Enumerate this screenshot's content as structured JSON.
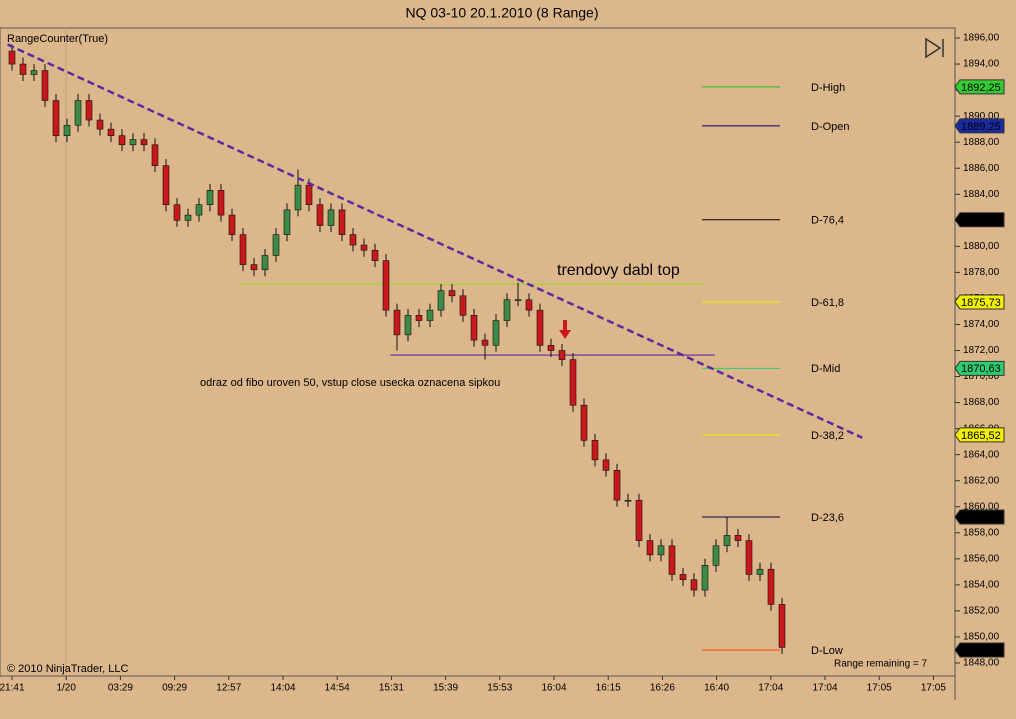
{
  "chart_data": {
    "type": "candlestick",
    "title": "NQ 03-10  20.1.2010 (8 Range)",
    "indicator": "RangeCounter(True)",
    "copyright": "© 2010 NinjaTrader, LLC",
    "range_remaining": "Range remaining = 7",
    "annotations": [
      "trendovy dabl top",
      "odraz od fibo uroven 50, vstup close usecka oznacena sipkou"
    ],
    "up_color": "#3d8a46",
    "down_color": "#c8181b",
    "ylim": [
      1847.0,
      1896.77
    ],
    "yticks": [
      {
        "value": 1848,
        "label": "1848,00"
      },
      {
        "value": 1850,
        "label": "1850,00"
      },
      {
        "value": 1852,
        "label": "1852,00"
      },
      {
        "value": 1854,
        "label": "1854,00"
      },
      {
        "value": 1856,
        "label": "1856,00"
      },
      {
        "value": 1858,
        "label": "1858,00"
      },
      {
        "value": 1860,
        "label": "1860,00"
      },
      {
        "value": 1862,
        "label": "1862,00"
      },
      {
        "value": 1864,
        "label": "1864,00"
      },
      {
        "value": 1866,
        "label": "1866,00"
      },
      {
        "value": 1868,
        "label": "1868,00"
      },
      {
        "value": 1870,
        "label": "1870,00"
      },
      {
        "value": 1872,
        "label": "1872,00"
      },
      {
        "value": 1874,
        "label": "1874,00"
      },
      {
        "value": 1876,
        "label": "1876,00"
      },
      {
        "value": 1878,
        "label": "1878,00"
      },
      {
        "value": 1880,
        "label": "1880,00"
      },
      {
        "value": 1882,
        "label": "1882,00"
      },
      {
        "value": 1884,
        "label": "1884,00"
      },
      {
        "value": 1886,
        "label": "1886,00"
      },
      {
        "value": 1888,
        "label": "1888,00"
      },
      {
        "value": 1890,
        "label": "1890,00"
      },
      {
        "value": 1892,
        "label": "1892,00"
      },
      {
        "value": 1894,
        "label": "1894,00"
      },
      {
        "value": 1896,
        "label": "1896,00"
      }
    ],
    "x_labels": [
      "21:41",
      "1/20",
      "03:29",
      "09:29",
      "12:57",
      "14:04",
      "14:54",
      "15:31",
      "15:39",
      "15:53",
      "16:04",
      "16:15",
      "16:26",
      "16:40",
      "17:04",
      "17:04",
      "17:05",
      "17:05"
    ],
    "open": [
      1895.0,
      1894.0,
      1893.2,
      1893.5,
      1891.2,
      1888.5,
      1889.3,
      1891.2,
      1889.7,
      1889.0,
      1888.5,
      1887.8,
      1888.2,
      1887.8,
      1886.2,
      1883.2,
      1882.0,
      1882.4,
      1883.2,
      1884.3,
      1882.4,
      1880.9,
      1878.6,
      1878.2,
      1879.3,
      1880.9,
      1882.8,
      1884.7,
      1883.2,
      1881.6,
      1882.8,
      1880.9,
      1880.1,
      1879.7,
      1878.9,
      1875.1,
      1873.2,
      1874.7,
      1874.3,
      1875.1,
      1876.6,
      1876.2,
      1874.7,
      1872.8,
      1872.4,
      1874.3,
      1875.9,
      1875.9,
      1875.1,
      1872.4,
      1872.0,
      1871.3,
      1867.8,
      1865.1,
      1863.6,
      1862.8,
      1860.5,
      1860.5,
      1857.4,
      1856.3,
      1857.0,
      1854.8,
      1854.4,
      1853.6,
      1855.5,
      1857.0,
      1857.8,
      1857.4,
      1854.8,
      1855.2,
      1852.5
    ],
    "high": [
      1895.5,
      1894.5,
      1894.0,
      1894.0,
      1891.7,
      1889.8,
      1891.7,
      1891.7,
      1890.2,
      1889.5,
      1889.0,
      1888.7,
      1888.7,
      1888.3,
      1886.7,
      1883.7,
      1882.9,
      1883.7,
      1884.8,
      1884.8,
      1882.9,
      1881.4,
      1879.1,
      1879.8,
      1881.4,
      1883.3,
      1885.9,
      1885.2,
      1883.7,
      1883.3,
      1883.3,
      1881.4,
      1880.6,
      1880.2,
      1879.4,
      1875.6,
      1875.2,
      1875.2,
      1875.6,
      1877.1,
      1877.1,
      1876.7,
      1875.2,
      1873.3,
      1874.8,
      1876.4,
      1877.2,
      1876.4,
      1875.6,
      1872.9,
      1872.5,
      1871.8,
      1868.3,
      1865.6,
      1864.1,
      1863.3,
      1861.0,
      1861.0,
      1857.9,
      1857.5,
      1857.5,
      1855.3,
      1854.9,
      1856.0,
      1857.5,
      1859.2,
      1858.3,
      1857.9,
      1855.7,
      1855.7,
      1853.0
    ],
    "low": [
      1893.5,
      1892.7,
      1892.7,
      1890.7,
      1888.0,
      1888.0,
      1888.8,
      1889.2,
      1888.5,
      1888.0,
      1887.3,
      1887.3,
      1887.3,
      1885.7,
      1882.7,
      1881.5,
      1881.5,
      1881.9,
      1882.7,
      1881.9,
      1880.4,
      1878.1,
      1877.7,
      1877.7,
      1878.8,
      1880.4,
      1882.3,
      1882.7,
      1881.1,
      1881.1,
      1880.4,
      1879.6,
      1879.2,
      1878.4,
      1874.6,
      1872.0,
      1872.7,
      1873.8,
      1873.8,
      1874.6,
      1875.7,
      1874.2,
      1872.3,
      1871.3,
      1871.9,
      1873.8,
      1875.4,
      1874.6,
      1871.9,
      1871.5,
      1870.8,
      1867.3,
      1864.6,
      1863.1,
      1862.3,
      1860.0,
      1860.0,
      1856.9,
      1855.8,
      1855.8,
      1854.3,
      1853.9,
      1853.1,
      1853.1,
      1855.0,
      1856.5,
      1856.9,
      1854.3,
      1854.3,
      1852.0,
      1848.7
    ],
    "close": [
      1894.0,
      1893.2,
      1893.5,
      1891.2,
      1888.5,
      1889.3,
      1891.2,
      1889.7,
      1889.0,
      1888.5,
      1887.8,
      1888.2,
      1887.8,
      1886.2,
      1883.2,
      1882.0,
      1882.4,
      1883.2,
      1884.3,
      1882.4,
      1880.9,
      1878.6,
      1878.2,
      1879.3,
      1880.9,
      1882.8,
      1884.7,
      1883.2,
      1881.6,
      1882.8,
      1880.9,
      1880.1,
      1879.7,
      1878.9,
      1875.1,
      1873.2,
      1874.7,
      1874.3,
      1875.1,
      1876.6,
      1876.2,
      1874.7,
      1872.8,
      1872.4,
      1874.3,
      1875.9,
      1875.9,
      1875.1,
      1872.4,
      1872.0,
      1871.3,
      1867.8,
      1865.1,
      1863.6,
      1862.8,
      1860.5,
      1860.5,
      1857.4,
      1856.3,
      1857.0,
      1854.8,
      1854.4,
      1853.6,
      1855.5,
      1857.0,
      1857.8,
      1857.4,
      1854.8,
      1855.2,
      1852.5,
      1849.2
    ],
    "trend_line": {
      "x": [
        -0.4,
        77.3
      ],
      "y": [
        1895.5,
        1865.3
      ],
      "color": "#5b2aa0"
    },
    "h_lines": [
      {
        "value": 1877.1,
        "x": [
          20.7,
          63.0
        ],
        "color": "#a6d43a"
      },
      {
        "value": 1871.65,
        "x": [
          34.4,
          63.9
        ],
        "color": "#6a2a9a"
      }
    ],
    "levels": [
      {
        "name": "D-High",
        "value": 1892.25,
        "label": "1892,25",
        "color": "#22c022",
        "badge_color": "#33cc33",
        "badge_text": "#000000"
      },
      {
        "name": "D-Open",
        "value": 1889.25,
        "label": "1889,25",
        "color": "#000080",
        "badge_color": "#1a2aa0",
        "badge_text": "#ffffff"
      },
      {
        "name": "D-76,4",
        "value": 1882.04,
        "label": "1882,04",
        "color": "#000000",
        "badge_color": "#000000",
        "badge_text": "#ffffff"
      },
      {
        "name": "D-61,8",
        "value": 1875.73,
        "label": "1875,73",
        "color": "#f0f000",
        "badge_color": "#f0f000",
        "badge_text": "#000000"
      },
      {
        "name": "D-Mid",
        "value": 1870.63,
        "label": "1870,63",
        "color": "#2ecc71",
        "badge_color": "#2ecc71",
        "badge_text": "#000000"
      },
      {
        "name": "D-38,2",
        "value": 1865.52,
        "label": "1865,52",
        "color": "#f0f000",
        "badge_color": "#f0f000",
        "badge_text": "#000000"
      },
      {
        "name": "D-23,6",
        "value": 1859.21,
        "label": "1859,21",
        "color": "#000040",
        "badge_color": "#000000",
        "badge_text": "#ffffff"
      },
      {
        "name": "D-Low",
        "value": 1849.0,
        "label": "1849,00",
        "color": "#ff4500",
        "badge_color": "#000000",
        "badge_text": "#ffffff"
      }
    ]
  }
}
